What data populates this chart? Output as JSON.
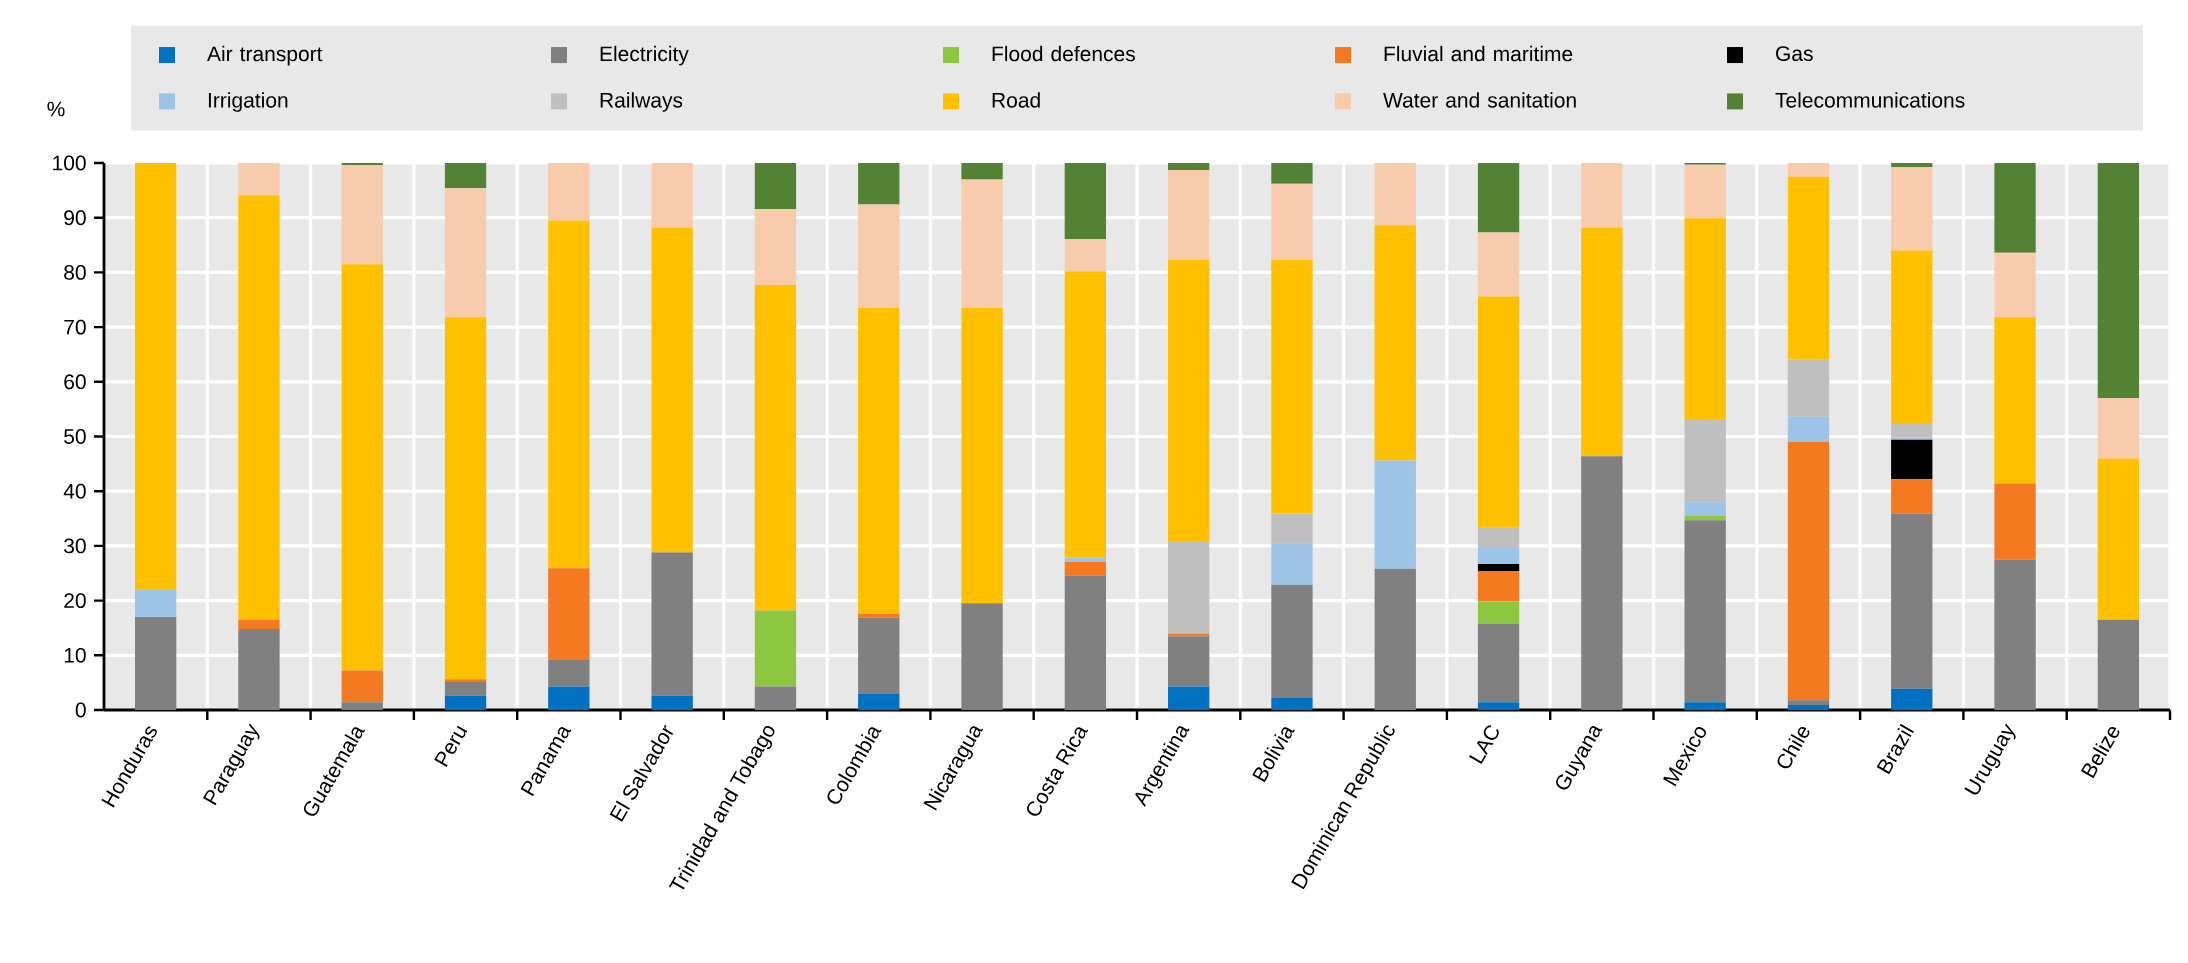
{
  "chart_data": {
    "type": "bar",
    "stacked": true,
    "ylabel": "%",
    "categories": [
      "Honduras",
      "Paraguay",
      "Guatemala",
      "Peru",
      "Panama",
      "El Salvador",
      "Trinidad and Tobago",
      "Colombia",
      "Nicaragua",
      "Costa Rica",
      "Argentina",
      "Bolivia",
      "Dominican Republic",
      "LAC",
      "Guyana",
      "Mexico",
      "Chile",
      "Brazil",
      "Uruguay",
      "Belize"
    ],
    "series": [
      {
        "name": "Air transport",
        "color": "#0070c0",
        "values": [
          0,
          0,
          0,
          2.6,
          4.3,
          2.6,
          0,
          3.0,
          0,
          0,
          4.3,
          2.2,
          0,
          1.4,
          0,
          1.4,
          0.9,
          3.9,
          0,
          0
        ]
      },
      {
        "name": "Electricity",
        "color": "#808080",
        "values": [
          17.0,
          14.8,
          1.4,
          2.5,
          5.0,
          26.2,
          4.3,
          13.9,
          19.5,
          24.6,
          9.2,
          20.7,
          25.8,
          14.3,
          46.4,
          33.3,
          0.9,
          32.0,
          27.5,
          16.5
        ]
      },
      {
        "name": "Flood defences",
        "color": "#8dc63f",
        "values": [
          0,
          0,
          0,
          0,
          0,
          0,
          13.9,
          0,
          0,
          0,
          0,
          0,
          0,
          4.2,
          0,
          0.8,
          0,
          0,
          0,
          0
        ]
      },
      {
        "name": "Fluvial and maritime",
        "color": "#f47920",
        "values": [
          0,
          1.7,
          5.8,
          0.5,
          16.6,
          0,
          0,
          0.7,
          0,
          2.5,
          0.5,
          0,
          0,
          5.5,
          0,
          0,
          47.2,
          6.3,
          13.9,
          0
        ]
      },
      {
        "name": "Gas",
        "color": "#000000",
        "values": [
          0,
          0,
          0,
          0,
          0,
          0,
          0,
          0,
          0,
          0,
          0,
          0,
          0,
          1.3,
          0,
          0,
          0,
          7.2,
          0,
          0
        ]
      },
      {
        "name": "Irrigation",
        "color": "#9dc3e6",
        "values": [
          5.0,
          0,
          0,
          0,
          0,
          0,
          0,
          0,
          0,
          0.8,
          0,
          7.6,
          19.8,
          2.9,
          0,
          2.5,
          4.6,
          0.4,
          0,
          0
        ]
      },
      {
        "name": "Railways",
        "color": "#bfbfbf",
        "values": [
          0,
          0,
          0,
          0,
          0,
          0,
          0,
          0,
          0,
          0,
          16.9,
          5.4,
          0,
          3.8,
          0,
          15.2,
          10.5,
          2.5,
          0,
          0
        ]
      },
      {
        "name": "Road",
        "color": "#ffc000",
        "values": [
          78.0,
          77.6,
          74.3,
          66.2,
          63.6,
          59.4,
          59.5,
          55.9,
          54.0,
          52.3,
          51.4,
          46.4,
          43.0,
          42.2,
          41.8,
          36.7,
          33.4,
          31.7,
          30.4,
          29.5
        ]
      },
      {
        "name": "Water and sanitation",
        "color": "#f7cbac",
        "values": [
          0,
          5.9,
          18.1,
          23.6,
          10.5,
          11.8,
          13.9,
          18.9,
          23.5,
          5.9,
          16.4,
          13.9,
          11.4,
          11.7,
          11.8,
          9.8,
          2.5,
          15.2,
          11.8,
          11.0
        ]
      },
      {
        "name": "Telecommunications",
        "color": "#548235",
        "values": [
          0,
          0,
          0.4,
          4.6,
          0,
          0,
          8.4,
          7.6,
          3.0,
          13.9,
          1.3,
          3.8,
          0,
          12.7,
          0,
          0.3,
          0,
          0.8,
          16.4,
          43.0
        ]
      }
    ],
    "ylim": [
      0,
      100
    ],
    "yticks": [
      0,
      10,
      20,
      30,
      40,
      50,
      60,
      70,
      80,
      90,
      100
    ],
    "grid": true,
    "legend": "top"
  }
}
